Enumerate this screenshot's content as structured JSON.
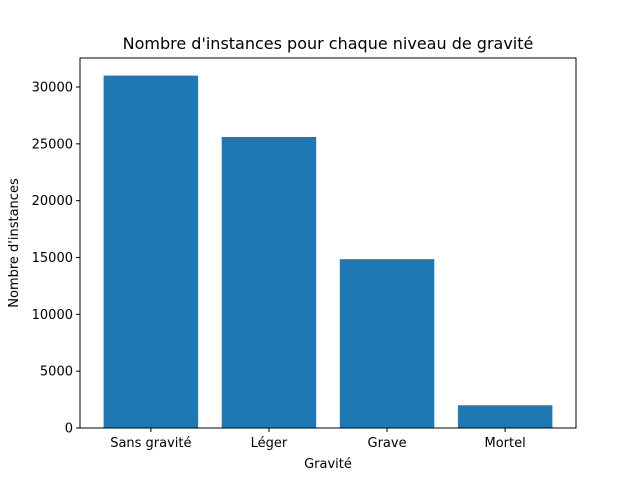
{
  "chart_data": {
    "type": "bar",
    "title": "Nombre d'instances pour chaque niveau de gravité",
    "xlabel": "Gravité",
    "ylabel": "Nombre d'instances",
    "categories": [
      "Sans gravité",
      "Léger",
      "Grave",
      "Mortel"
    ],
    "values": [
      31000,
      25600,
      14850,
      2000
    ],
    "ylim": [
      0,
      32550
    ],
    "yticks": [
      0,
      5000,
      10000,
      15000,
      20000,
      25000,
      30000
    ],
    "ytick_labels": [
      "0",
      "5000",
      "10000",
      "15000",
      "20000",
      "25000",
      "30000"
    ],
    "grid": false,
    "legend": "none",
    "bar_color": "#1f77b4"
  }
}
